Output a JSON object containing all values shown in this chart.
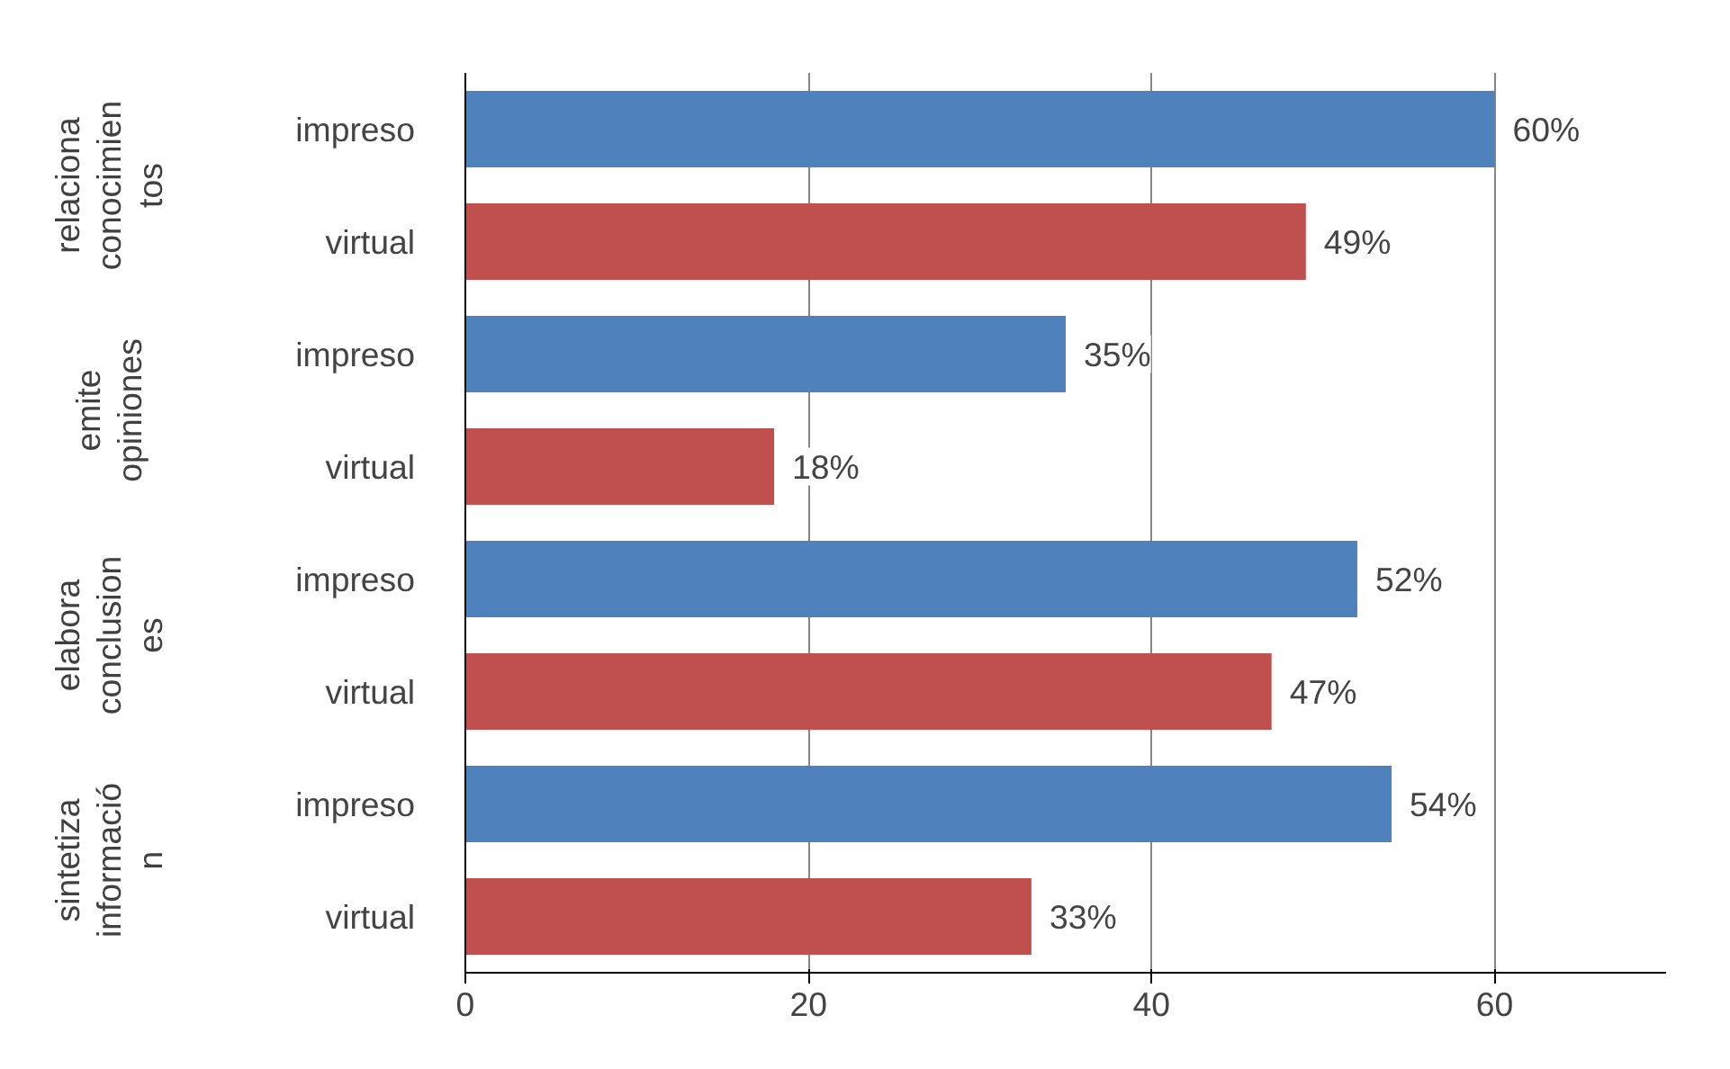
{
  "chart_data": {
    "type": "bar",
    "orientation": "horizontal",
    "categories": [
      "impreso",
      "virtual",
      "impreso",
      "virtual",
      "impreso",
      "virtual",
      "impreso",
      "virtual"
    ],
    "values": [
      60,
      49,
      35,
      18,
      52,
      47,
      54,
      33
    ],
    "colors": [
      "#4f81bd",
      "#c0504d",
      "#4f81bd",
      "#c0504d",
      "#4f81bd",
      "#c0504d",
      "#4f81bd",
      "#c0504d"
    ],
    "value_labels": [
      "60%",
      "49%",
      "35%",
      "18%",
      "52%",
      "47%",
      "54%",
      "33%"
    ],
    "annotations": [
      "relaciona conocimientos",
      "emite opiniones",
      "elabora conclusiones",
      "sintetiza información"
    ],
    "xlim": [
      0,
      70
    ],
    "xticks": [
      0,
      20,
      40,
      60
    ],
    "grid": "x"
  }
}
